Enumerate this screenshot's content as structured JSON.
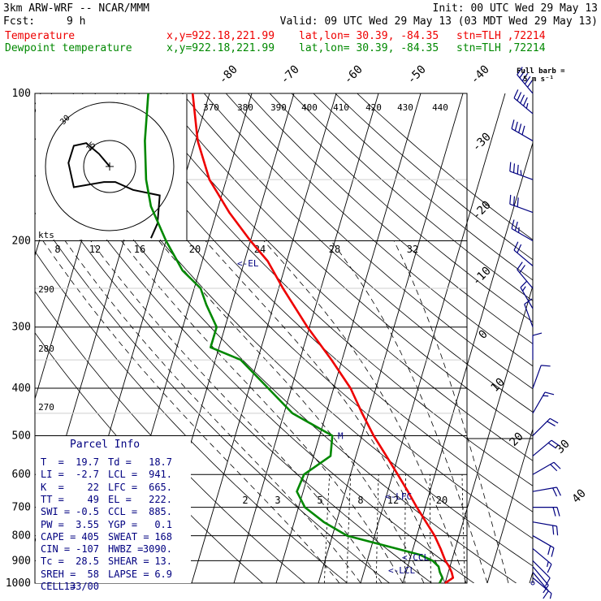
{
  "header": {
    "model": "3km ARW-WRF -- NCAR/MMM",
    "init": "Init: 00 UTC Wed 29 May 13",
    "fcst_label": "Fcst:",
    "fcst_value": "9 h",
    "valid": "Valid: 09 UTC Wed 29 May 13 (03 MDT Wed 29 May 13)"
  },
  "legend": {
    "temperature": {
      "label": "Temperature",
      "xy": "x,y=922.18,221.99",
      "latlon": "lat,lon= 30.39, -84.35",
      "stn": "stn=TLH ,72214",
      "color": "#ee0000"
    },
    "dewpoint": {
      "label": "Dewpoint temperature",
      "xy": "x,y=922.18,221.99",
      "latlon": "lat,lon= 30.39, -84.35",
      "stn": "stn=TLH ,72214",
      "color": "#008800"
    }
  },
  "barb_title": "Full barb =",
  "barb_unit": "5 m s⁻¹",
  "hodograph": {
    "kts_label": "kts",
    "speed_ticks": [
      "8",
      "12",
      "16",
      "20",
      "24",
      "28",
      "32"
    ],
    "ring_labels": [
      "30",
      "15"
    ]
  },
  "parcel_info": {
    "title": "Parcel Info",
    "rows": [
      [
        "T  =",
        "19.7",
        "Td =",
        "18.7"
      ],
      [
        "LI =",
        "-2.7",
        "LCL =",
        "941."
      ],
      [
        "K  =",
        "22",
        "LFC =",
        "665."
      ],
      [
        "TT =",
        "49",
        "EL =",
        "222."
      ],
      [
        "SWI =",
        "-0.5",
        "CCL =",
        "885."
      ],
      [
        "PW =",
        "3.55",
        "YGP =",
        "0.1"
      ],
      [
        "CAPE =",
        "405",
        "SWEAT =",
        "168"
      ],
      [
        "CIN =",
        "-107",
        "HWBZ =",
        "3090."
      ],
      [
        "Tc =",
        "28.5",
        "SHEAR =",
        "13."
      ],
      [
        "SREH =",
        "58",
        "LAPSE =",
        "6.9"
      ],
      [
        "CELL =",
        "133/00",
        "",
        ""
      ]
    ]
  },
  "chart_data": {
    "type": "line",
    "chart_kind": "skew-T log-p diagram",
    "y_axis": "pressure (hPa), logarithmic, reversed",
    "ylim": [
      1000,
      100
    ],
    "pressure_labels": [
      100,
      200,
      300,
      400,
      500,
      600,
      700,
      800,
      900,
      1000
    ],
    "isotherm_labels": [
      "-80",
      "-70",
      "-60",
      "-50",
      "-40",
      "-30",
      "-20",
      "-10",
      "0",
      "10",
      "20",
      "30",
      "40"
    ],
    "theta_labels": [
      "370",
      "380",
      "390",
      "400",
      "410",
      "420",
      "430",
      "440",
      "290",
      "280",
      "270"
    ],
    "mixing_ratio_labels": [
      "2",
      "3",
      "5",
      "8",
      "12",
      "20"
    ],
    "level_markers": [
      {
        "label": "EL",
        "p": 222
      },
      {
        "label": "LFC",
        "p": 665
      },
      {
        "label": "CCL",
        "p": 885
      },
      {
        "label": "LCL",
        "p": 941
      },
      {
        "label": "M",
        "p": 500
      }
    ],
    "series": [
      {
        "name": "Temperature",
        "color": "#ee0000",
        "points": [
          [
            1000,
            20.0
          ],
          [
            975,
            21.5
          ],
          [
            950,
            20.8
          ],
          [
            925,
            19.8
          ],
          [
            900,
            18.5
          ],
          [
            850,
            16.5
          ],
          [
            800,
            14.2
          ],
          [
            750,
            11.2
          ],
          [
            700,
            8.0
          ],
          [
            650,
            4.8
          ],
          [
            600,
            1.2
          ],
          [
            550,
            -2.8
          ],
          [
            500,
            -7.2
          ],
          [
            450,
            -11.5
          ],
          [
            400,
            -16.0
          ],
          [
            350,
            -22.5
          ],
          [
            300,
            -30.5
          ],
          [
            250,
            -39.0
          ],
          [
            220,
            -44.5
          ],
          [
            200,
            -50.0
          ],
          [
            175,
            -57.0
          ],
          [
            150,
            -64.0
          ],
          [
            125,
            -69.5
          ],
          [
            100,
            -74.0
          ]
        ]
      },
      {
        "name": "Dewpoint temperature",
        "color": "#008800",
        "points": [
          [
            1000,
            18.7
          ],
          [
            975,
            19.0
          ],
          [
            950,
            18.0
          ],
          [
            925,
            17.3
          ],
          [
            900,
            15.5
          ],
          [
            875,
            12.0
          ],
          [
            850,
            6.0
          ],
          [
            800,
            -6.5
          ],
          [
            750,
            -13.0
          ],
          [
            700,
            -18.5
          ],
          [
            650,
            -21.5
          ],
          [
            600,
            -21.0
          ],
          [
            550,
            -16.0
          ],
          [
            500,
            -17.0
          ],
          [
            450,
            -28.0
          ],
          [
            400,
            -35.5
          ],
          [
            350,
            -44.0
          ],
          [
            330,
            -52.0
          ],
          [
            300,
            -52.0
          ],
          [
            270,
            -56.0
          ],
          [
            250,
            -58.5
          ],
          [
            230,
            -64.0
          ],
          [
            200,
            -70.0
          ],
          [
            170,
            -76.0
          ],
          [
            150,
            -79.0
          ],
          [
            125,
            -82.0
          ],
          [
            100,
            -84.5
          ]
        ]
      }
    ],
    "hodograph_trace": [
      [
        1000,
        0,
        0
      ],
      [
        900,
        140,
        10
      ],
      [
        800,
        135,
        20
      ],
      [
        700,
        120,
        25
      ],
      [
        600,
        95,
        25
      ],
      [
        500,
        60,
        25
      ],
      [
        400,
        20,
        10
      ],
      [
        300,
        340,
        10
      ],
      [
        200,
        315,
        20
      ],
      [
        150,
        300,
        35
      ],
      [
        120,
        320,
        45
      ],
      [
        100,
        330,
        50
      ]
    ],
    "wind_profile": [
      [
        1000,
        0,
        0
      ],
      [
        975,
        130,
        5
      ],
      [
        950,
        140,
        10
      ],
      [
        925,
        140,
        10
      ],
      [
        900,
        135,
        10
      ],
      [
        850,
        130,
        15
      ],
      [
        800,
        120,
        20
      ],
      [
        750,
        100,
        20
      ],
      [
        700,
        90,
        20
      ],
      [
        650,
        80,
        20
      ],
      [
        600,
        60,
        20
      ],
      [
        550,
        50,
        20
      ],
      [
        500,
        45,
        20
      ],
      [
        450,
        30,
        15
      ],
      [
        400,
        20,
        10
      ],
      [
        350,
        0,
        10
      ],
      [
        300,
        340,
        10
      ],
      [
        275,
        330,
        15
      ],
      [
        250,
        320,
        20
      ],
      [
        225,
        310,
        20
      ],
      [
        200,
        300,
        25
      ],
      [
        175,
        290,
        30
      ],
      [
        150,
        290,
        35
      ],
      [
        125,
        300,
        40
      ],
      [
        110,
        310,
        45
      ],
      [
        100,
        320,
        50
      ]
    ],
    "grid": true
  }
}
